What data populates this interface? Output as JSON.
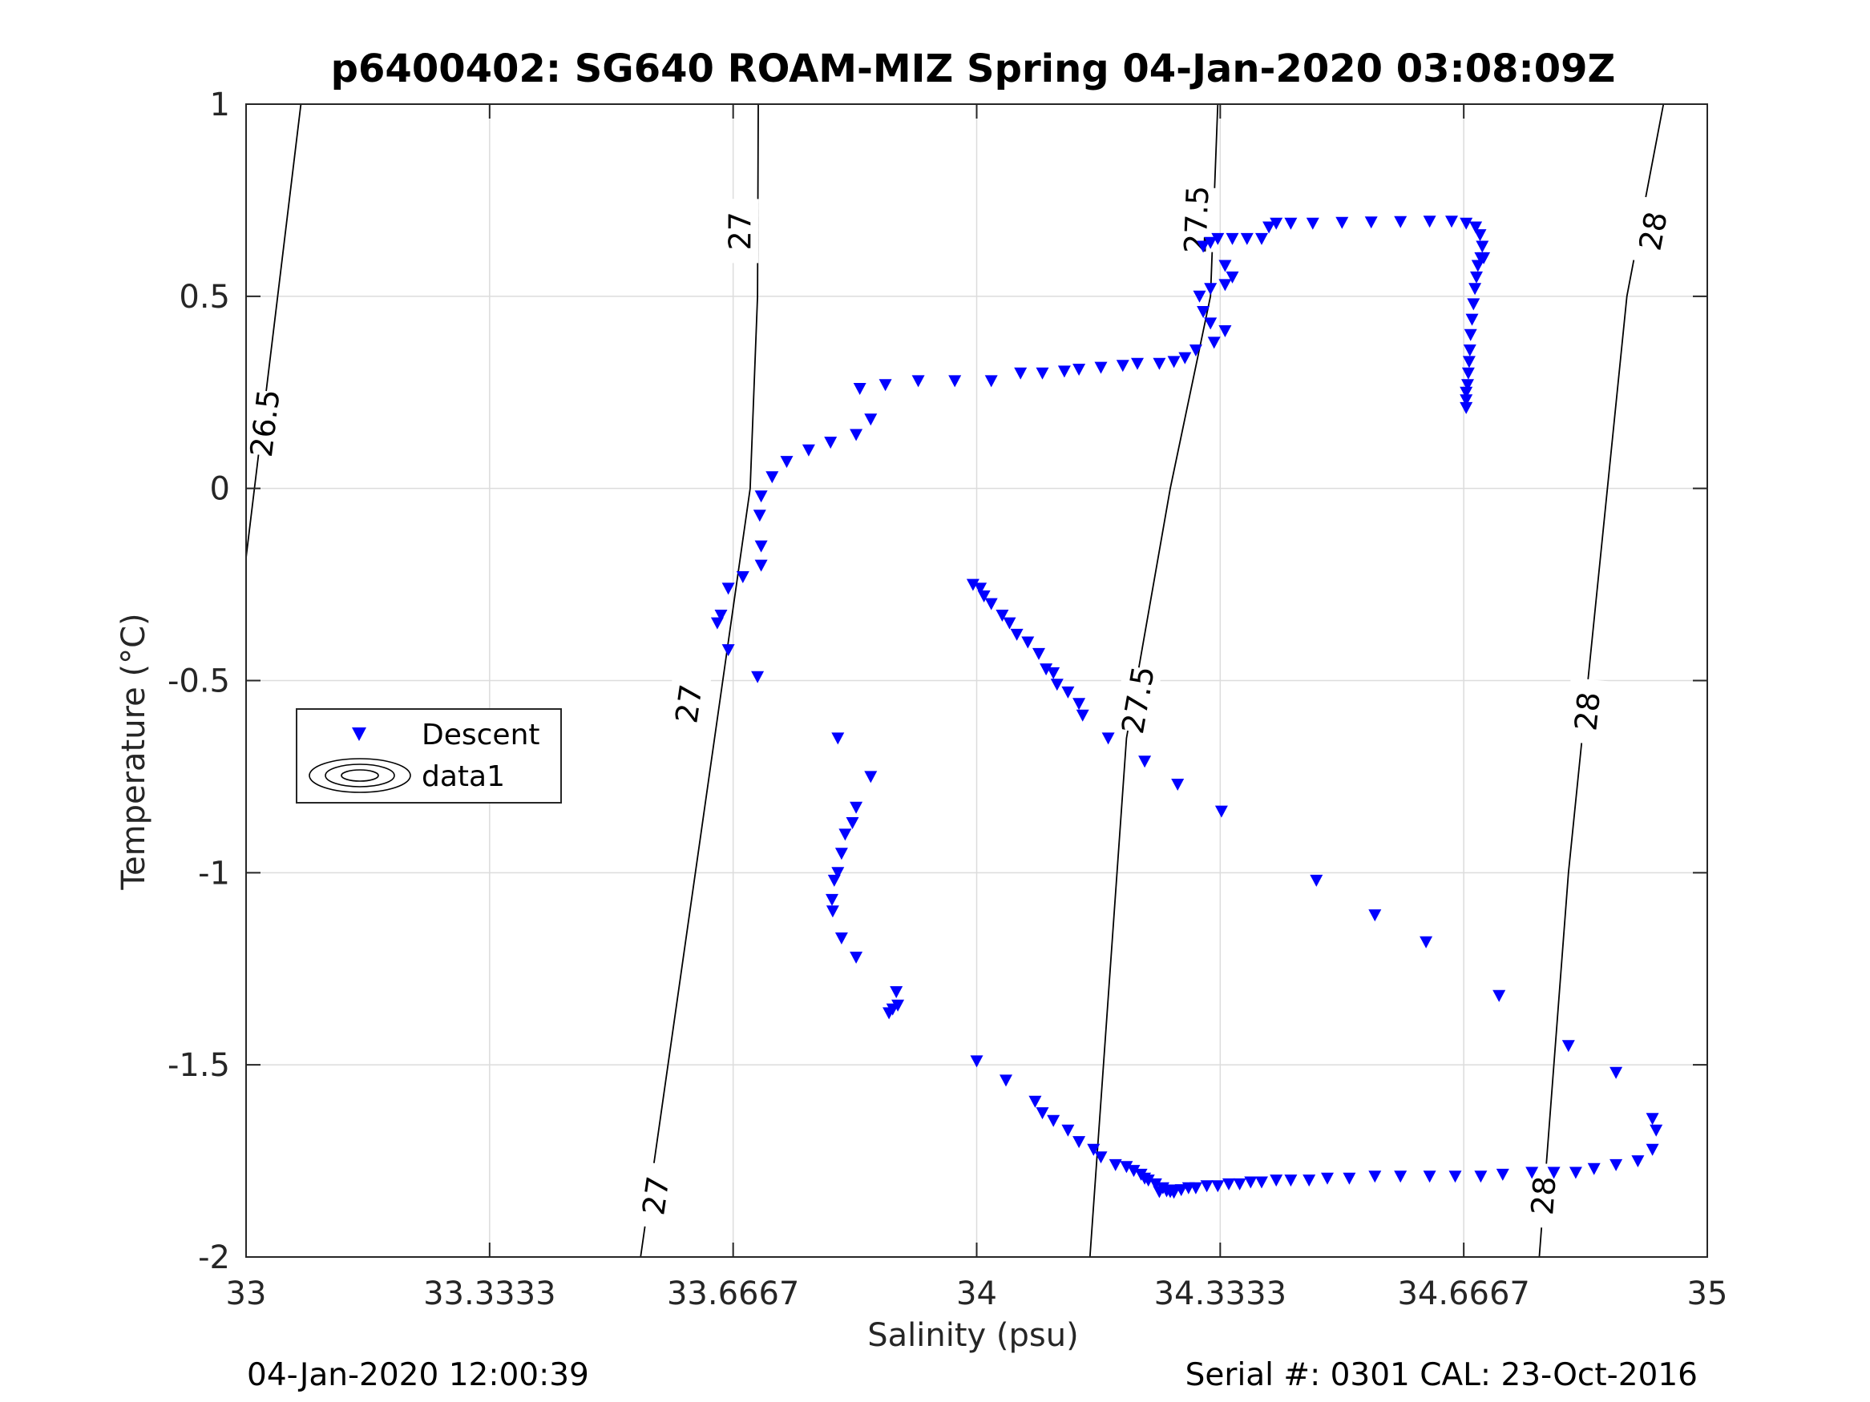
{
  "footer": {
    "left": "04-Jan-2020 12:00:39",
    "right": "Serial #: 0301  CAL: 23-Oct-2016"
  },
  "chart_data": {
    "type": "scatter",
    "title": "p6400402: SG640 ROAM-MIZ Spring 04-Jan-2020 03:08:09Z",
    "xlabel": "Salinity (psu)",
    "ylabel": "Temperature (°C)",
    "xlim": [
      33,
      35
    ],
    "ylim": [
      -2,
      1
    ],
    "xticks": [
      "33",
      "33.3333",
      "33.6667",
      "34",
      "34.3333",
      "34.6667",
      "35"
    ],
    "yticks": [
      "1",
      "0.5",
      "0",
      "-0.5",
      "-1",
      "-1.5",
      "-2"
    ],
    "grid": true,
    "legend": {
      "position": "left-middle",
      "entries": [
        "Descent",
        "data1"
      ]
    },
    "colors": {
      "descent": "#0000ff",
      "contour": "#000000",
      "grid": "#dcdcdc"
    },
    "contours": [
      {
        "level": "26.5",
        "points": [
          [
            33.0,
            -0.18
          ],
          [
            33.075,
            1.0
          ]
        ],
        "labels": [
          {
            "x": 33.025,
            "y": 0.17
          }
        ]
      },
      {
        "level": "27",
        "points": [
          [
            33.54,
            -2.0
          ],
          [
            33.69,
            0.0
          ],
          [
            33.7,
            0.5
          ],
          [
            33.701,
            1.0
          ]
        ],
        "labels": [
          {
            "x": 33.56,
            "y": -1.84
          },
          {
            "x": 33.605,
            "y": -0.56
          },
          {
            "x": 33.675,
            "y": 0.67
          }
        ]
      },
      {
        "level": "27.5",
        "points": [
          [
            34.155,
            -2.0
          ],
          [
            34.205,
            -0.65
          ],
          [
            34.265,
            0.0
          ],
          [
            34.32,
            0.5
          ],
          [
            34.33,
            1.0
          ]
        ],
        "labels": [
          {
            "x": 34.22,
            "y": -0.55
          },
          {
            "x": 34.3,
            "y": 0.7
          }
        ]
      },
      {
        "level": "28",
        "points": [
          [
            34.77,
            -2.0
          ],
          [
            34.81,
            -1.0
          ],
          [
            34.89,
            0.5
          ],
          [
            34.94,
            1.0
          ]
        ],
        "labels": [
          {
            "x": 34.775,
            "y": -1.84
          },
          {
            "x": 34.835,
            "y": -0.58
          },
          {
            "x": 34.925,
            "y": 0.67
          }
        ]
      }
    ],
    "series": [
      {
        "name": "Descent",
        "marker": "triangle-down",
        "points": [
          [
            34.67,
            0.21
          ],
          [
            34.67,
            0.23
          ],
          [
            34.67,
            0.25
          ],
          [
            34.672,
            0.27
          ],
          [
            34.673,
            0.3
          ],
          [
            34.674,
            0.33
          ],
          [
            34.675,
            0.36
          ],
          [
            34.676,
            0.4
          ],
          [
            34.678,
            0.44
          ],
          [
            34.68,
            0.48
          ],
          [
            34.682,
            0.52
          ],
          [
            34.684,
            0.55
          ],
          [
            34.686,
            0.58
          ],
          [
            34.69,
            0.6
          ],
          [
            34.694,
            0.6
          ],
          [
            34.692,
            0.63
          ],
          [
            34.689,
            0.66
          ],
          [
            34.683,
            0.68
          ],
          [
            34.67,
            0.69
          ],
          [
            34.65,
            0.695
          ],
          [
            34.62,
            0.695
          ],
          [
            34.58,
            0.694
          ],
          [
            34.54,
            0.693
          ],
          [
            34.5,
            0.692
          ],
          [
            34.46,
            0.69
          ],
          [
            34.43,
            0.69
          ],
          [
            34.41,
            0.69
          ],
          [
            34.4,
            0.68
          ],
          [
            34.39,
            0.65
          ],
          [
            34.37,
            0.65
          ],
          [
            34.35,
            0.65
          ],
          [
            34.33,
            0.65
          ],
          [
            34.32,
            0.64
          ],
          [
            34.31,
            0.63
          ],
          [
            34.34,
            0.58
          ],
          [
            34.35,
            0.55
          ],
          [
            34.34,
            0.53
          ],
          [
            34.32,
            0.52
          ],
          [
            34.305,
            0.5
          ],
          [
            34.31,
            0.46
          ],
          [
            34.32,
            0.43
          ],
          [
            34.34,
            0.41
          ],
          [
            34.325,
            0.38
          ],
          [
            34.3,
            0.36
          ],
          [
            34.285,
            0.34
          ],
          [
            34.27,
            0.33
          ],
          [
            34.25,
            0.325
          ],
          [
            34.22,
            0.325
          ],
          [
            34.2,
            0.32
          ],
          [
            34.17,
            0.315
          ],
          [
            34.14,
            0.31
          ],
          [
            34.12,
            0.305
          ],
          [
            34.09,
            0.3
          ],
          [
            34.06,
            0.3
          ],
          [
            34.02,
            0.28
          ],
          [
            33.97,
            0.28
          ],
          [
            33.92,
            0.28
          ],
          [
            33.875,
            0.27
          ],
          [
            33.84,
            0.26
          ],
          [
            33.855,
            0.18
          ],
          [
            33.835,
            0.14
          ],
          [
            33.8,
            0.12
          ],
          [
            33.77,
            0.1
          ],
          [
            33.74,
            0.07
          ],
          [
            33.72,
            0.03
          ],
          [
            33.705,
            -0.02
          ],
          [
            33.703,
            -0.07
          ],
          [
            33.705,
            -0.15
          ],
          [
            33.705,
            -0.2
          ],
          [
            33.68,
            -0.23
          ],
          [
            33.66,
            -0.26
          ],
          [
            33.65,
            -0.33
          ],
          [
            33.645,
            -0.35
          ],
          [
            33.66,
            -0.42
          ],
          [
            33.7,
            -0.49
          ],
          [
            33.81,
            -0.65
          ],
          [
            33.855,
            -0.75
          ],
          [
            33.835,
            -0.83
          ],
          [
            33.83,
            -0.87
          ],
          [
            33.82,
            -0.9
          ],
          [
            33.815,
            -0.95
          ],
          [
            33.81,
            -1.0
          ],
          [
            33.805,
            -1.02
          ],
          [
            33.802,
            -1.07
          ],
          [
            33.803,
            -1.1
          ],
          [
            33.815,
            -1.17
          ],
          [
            33.835,
            -1.22
          ],
          [
            33.89,
            -1.31
          ],
          [
            33.892,
            -1.345
          ],
          [
            33.885,
            -1.355
          ],
          [
            33.88,
            -1.365
          ],
          [
            33.995,
            -0.25
          ],
          [
            34.005,
            -0.26
          ],
          [
            34.01,
            -0.28
          ],
          [
            34.02,
            -0.3
          ],
          [
            34.035,
            -0.33
          ],
          [
            34.045,
            -0.35
          ],
          [
            34.055,
            -0.38
          ],
          [
            34.07,
            -0.4
          ],
          [
            34.085,
            -0.43
          ],
          [
            34.095,
            -0.47
          ],
          [
            34.105,
            -0.48
          ],
          [
            34.11,
            -0.51
          ],
          [
            34.125,
            -0.53
          ],
          [
            34.14,
            -0.56
          ],
          [
            34.145,
            -0.59
          ],
          [
            34.18,
            -0.65
          ],
          [
            34.23,
            -0.71
          ],
          [
            34.275,
            -0.77
          ],
          [
            34.335,
            -0.84
          ],
          [
            34.465,
            -1.02
          ],
          [
            34.545,
            -1.11
          ],
          [
            34.615,
            -1.18
          ],
          [
            34.715,
            -1.32
          ],
          [
            34.81,
            -1.45
          ],
          [
            34.875,
            -1.52
          ],
          [
            34.925,
            -1.64
          ],
          [
            34.93,
            -1.67
          ],
          [
            34.925,
            -1.72
          ],
          [
            34.905,
            -1.75
          ],
          [
            34.875,
            -1.76
          ],
          [
            34.845,
            -1.77
          ],
          [
            34.82,
            -1.78
          ],
          [
            34.79,
            -1.78
          ],
          [
            34.76,
            -1.78
          ],
          [
            34.72,
            -1.785
          ],
          [
            34.69,
            -1.79
          ],
          [
            34.655,
            -1.79
          ],
          [
            34.62,
            -1.79
          ],
          [
            34.58,
            -1.79
          ],
          [
            34.545,
            -1.79
          ],
          [
            34.51,
            -1.795
          ],
          [
            34.48,
            -1.795
          ],
          [
            34.455,
            -1.8
          ],
          [
            34.43,
            -1.8
          ],
          [
            34.41,
            -1.8
          ],
          [
            34.39,
            -1.805
          ],
          [
            34.375,
            -1.805
          ],
          [
            34.36,
            -1.81
          ],
          [
            34.345,
            -1.81
          ],
          [
            34.33,
            -1.815
          ],
          [
            34.315,
            -1.815
          ],
          [
            34.3,
            -1.82
          ],
          [
            34.29,
            -1.82
          ],
          [
            34.28,
            -1.825
          ],
          [
            34.27,
            -1.826
          ],
          [
            34.26,
            -1.828
          ],
          [
            34.25,
            -1.83
          ],
          [
            34.27,
            -1.832
          ],
          [
            34.265,
            -1.83
          ],
          [
            34.255,
            -1.82
          ],
          [
            34.245,
            -1.81
          ],
          [
            34.235,
            -1.8
          ],
          [
            34.23,
            -1.795
          ],
          [
            34.225,
            -1.785
          ],
          [
            34.215,
            -1.775
          ],
          [
            34.205,
            -1.765
          ],
          [
            34.19,
            -1.76
          ],
          [
            34.17,
            -1.74
          ],
          [
            34.16,
            -1.72
          ],
          [
            34.14,
            -1.7
          ],
          [
            34.125,
            -1.67
          ],
          [
            34.105,
            -1.645
          ],
          [
            34.09,
            -1.625
          ],
          [
            34.08,
            -1.595
          ],
          [
            34.04,
            -1.54
          ],
          [
            34.0,
            -1.49
          ]
        ]
      }
    ]
  }
}
